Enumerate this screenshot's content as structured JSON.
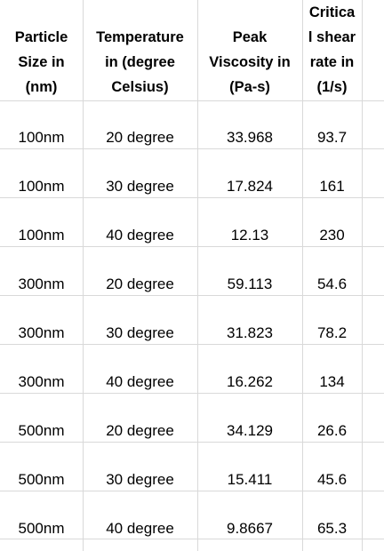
{
  "columns": [
    "Particle\nSize in\n(nm)",
    "Temperature\nin (degree\nCelsius)",
    "Peak\nViscosity in\n(Pa-s)",
    "Critica\nl shear\nrate in\n(1/s)"
  ],
  "rows": [
    [
      "100nm",
      "20 degree",
      "33.968",
      "93.7"
    ],
    [
      "100nm",
      "30 degree",
      "17.824",
      "161"
    ],
    [
      "100nm",
      "40 degree",
      "12.13",
      "230"
    ],
    [
      "300nm",
      "20 degree",
      "59.113",
      "54.6"
    ],
    [
      "300nm",
      "30 degree",
      "31.823",
      "78.2"
    ],
    [
      "300nm",
      "40 degree",
      "16.262",
      "134"
    ],
    [
      "500nm",
      "20 degree",
      "34.129",
      "26.6"
    ],
    [
      "500nm",
      "30 degree",
      "15.411",
      "45.6"
    ],
    [
      "500nm",
      "40 degree",
      "9.8667",
      "65.3"
    ]
  ]
}
